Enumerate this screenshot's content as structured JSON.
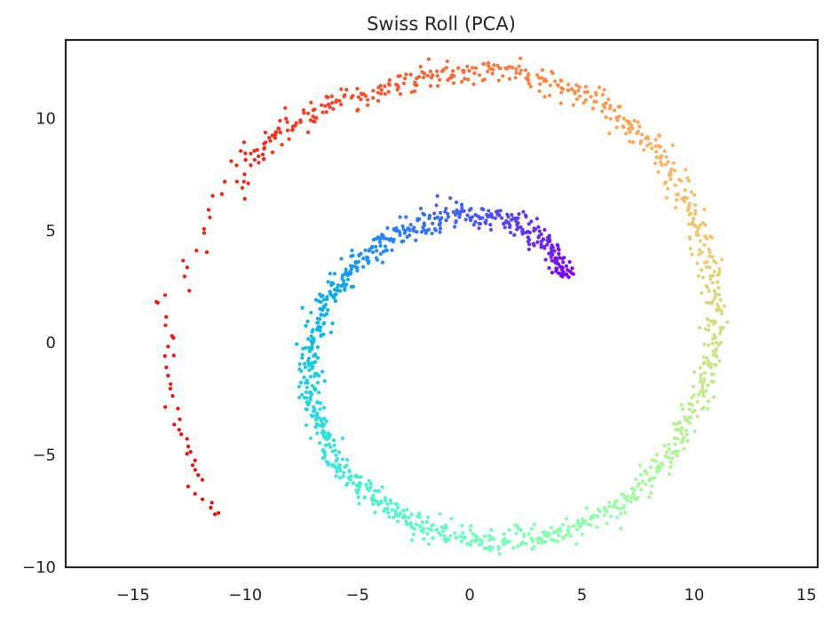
{
  "chart_data": {
    "type": "scatter",
    "title": "Swiss Roll (PCA)",
    "xlabel": "",
    "ylabel": "",
    "xlim": [
      -18,
      15.5
    ],
    "ylim": [
      -10,
      13.5
    ],
    "xticks": [
      -15,
      -10,
      -5,
      0,
      5,
      10,
      15
    ],
    "yticks": [
      -10,
      -5,
      0,
      5,
      10
    ],
    "xtick_labels": [
      "−15",
      "−10",
      "−5",
      "0",
      "5",
      "10",
      "15"
    ],
    "ytick_labels": [
      "−10",
      "−5",
      "0",
      "5",
      "10"
    ],
    "grid": false,
    "legend": "none",
    "colormap": "rainbow",
    "point_count": 1500,
    "curve": {
      "description": "spiral points ordered along color parameter t in [0,1]",
      "start_point": [
        4.3,
        2.8
      ],
      "end_point": [
        -11.3,
        -7.8
      ],
      "center": [
        0.6,
        -1.4
      ],
      "samples": [
        {
          "t": 0.0,
          "x": 4.3,
          "y": 2.8
        },
        {
          "t": 0.04,
          "x": 3.5,
          "y": 4.4
        },
        {
          "t": 0.08,
          "x": 1.8,
          "y": 5.5
        },
        {
          "t": 0.12,
          "x": -0.5,
          "y": 5.8
        },
        {
          "t": 0.16,
          "x": -2.9,
          "y": 5.1
        },
        {
          "t": 0.2,
          "x": -5.0,
          "y": 3.7
        },
        {
          "t": 0.24,
          "x": -6.5,
          "y": 1.8
        },
        {
          "t": 0.28,
          "x": -7.2,
          "y": -0.6
        },
        {
          "t": 0.32,
          "x": -7.0,
          "y": -3.0
        },
        {
          "t": 0.36,
          "x": -6.0,
          "y": -5.2
        },
        {
          "t": 0.4,
          "x": -4.2,
          "y": -7.0
        },
        {
          "t": 0.44,
          "x": -1.8,
          "y": -8.3
        },
        {
          "t": 0.48,
          "x": 1.1,
          "y": -8.9
        },
        {
          "t": 0.52,
          "x": 4.2,
          "y": -8.5
        },
        {
          "t": 0.56,
          "x": 7.0,
          "y": -7.0
        },
        {
          "t": 0.6,
          "x": 9.2,
          "y": -4.6
        },
        {
          "t": 0.64,
          "x": 10.6,
          "y": -1.5
        },
        {
          "t": 0.68,
          "x": 11.0,
          "y": 2.0
        },
        {
          "t": 0.72,
          "x": 10.2,
          "y": 5.4
        },
        {
          "t": 0.76,
          "x": 8.4,
          "y": 8.6
        },
        {
          "t": 0.8,
          "x": 5.6,
          "y": 10.9
        },
        {
          "t": 0.84,
          "x": 1.9,
          "y": 12.1
        },
        {
          "t": 0.88,
          "x": -2.1,
          "y": 11.9
        },
        {
          "t": 0.92,
          "x": -6.3,
          "y": 10.6
        },
        {
          "t": 0.96,
          "x": -10.0,
          "y": 8.3
        },
        {
          "t": 1.0,
          "x": -11.3,
          "y": -7.8
        }
      ]
    }
  }
}
